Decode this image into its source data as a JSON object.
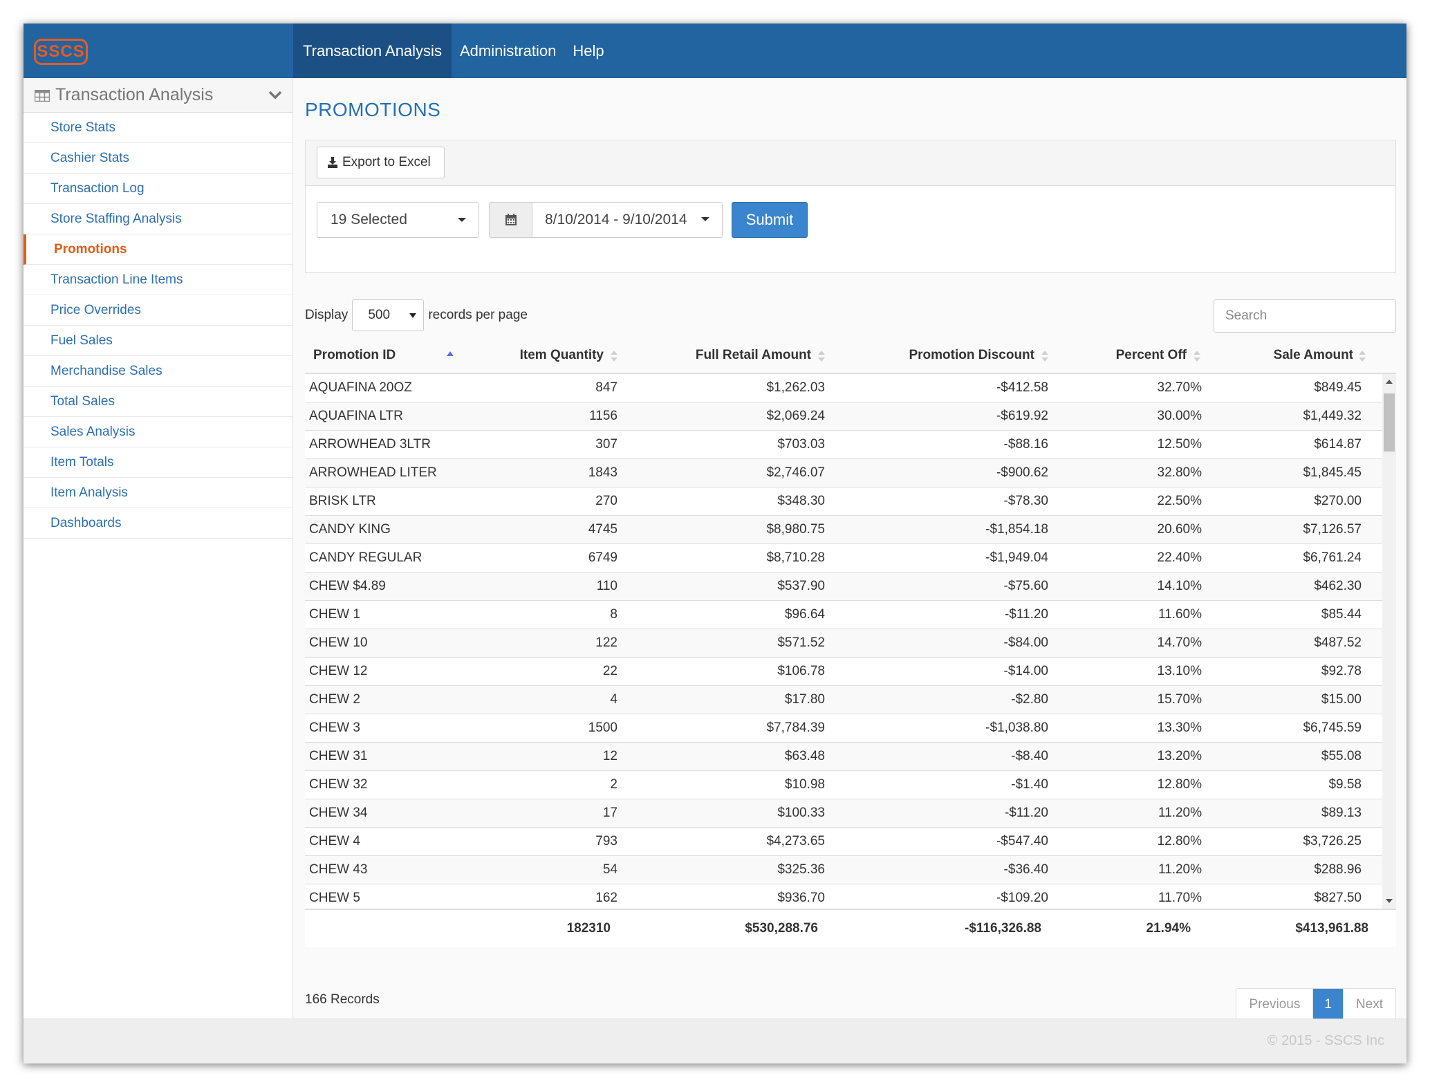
{
  "brand": {
    "logo_text": "SSCS",
    "accent": "#ea5a20",
    "primary": "#2264a0"
  },
  "nav": {
    "items": [
      {
        "label": "Transaction Analysis"
      },
      {
        "label": "Administration"
      },
      {
        "label": "Help"
      }
    ]
  },
  "sidebar": {
    "header": "Transaction Analysis",
    "items": [
      {
        "label": "Store Stats"
      },
      {
        "label": "Cashier Stats"
      },
      {
        "label": "Transaction Log"
      },
      {
        "label": "Store Staffing Analysis"
      },
      {
        "label": "Promotions"
      },
      {
        "label": "Transaction Line Items"
      },
      {
        "label": "Price Overrides"
      },
      {
        "label": "Fuel Sales"
      },
      {
        "label": "Merchandise Sales"
      },
      {
        "label": "Total Sales"
      },
      {
        "label": "Sales Analysis"
      },
      {
        "label": "Item Totals"
      },
      {
        "label": "Item Analysis"
      },
      {
        "label": "Dashboards"
      }
    ]
  },
  "page": {
    "title": "PROMOTIONS"
  },
  "toolbar": {
    "export_label": "Export to Excel",
    "store_select": "19 Selected",
    "date_range": "8/10/2014 - 9/10/2014",
    "submit_label": "Submit"
  },
  "table_controls": {
    "display_label": "Display",
    "page_length": "500",
    "per_page_label": "records per page",
    "search_placeholder": "Search"
  },
  "table": {
    "columns": [
      "Promotion ID",
      "Item Quantity",
      "Full Retail Amount",
      "Promotion Discount",
      "Percent Off",
      "Sale Amount"
    ],
    "sort": {
      "column": "Promotion ID",
      "direction": "ascending"
    },
    "rows": [
      [
        "AQUAFINA 20OZ",
        "847",
        "$1,262.03",
        "-$412.58",
        "32.70%",
        "$849.45"
      ],
      [
        "AQUAFINA LTR",
        "1156",
        "$2,069.24",
        "-$619.92",
        "30.00%",
        "$1,449.32"
      ],
      [
        "ARROWHEAD 3LTR",
        "307",
        "$703.03",
        "-$88.16",
        "12.50%",
        "$614.87"
      ],
      [
        "ARROWHEAD LITER",
        "1843",
        "$2,746.07",
        "-$900.62",
        "32.80%",
        "$1,845.45"
      ],
      [
        "BRISK LTR",
        "270",
        "$348.30",
        "-$78.30",
        "22.50%",
        "$270.00"
      ],
      [
        "CANDY KING",
        "4745",
        "$8,980.75",
        "-$1,854.18",
        "20.60%",
        "$7,126.57"
      ],
      [
        "CANDY REGULAR",
        "6749",
        "$8,710.28",
        "-$1,949.04",
        "22.40%",
        "$6,761.24"
      ],
      [
        "CHEW $4.89",
        "110",
        "$537.90",
        "-$75.60",
        "14.10%",
        "$462.30"
      ],
      [
        "CHEW 1",
        "8",
        "$96.64",
        "-$11.20",
        "11.60%",
        "$85.44"
      ],
      [
        "CHEW 10",
        "122",
        "$571.52",
        "-$84.00",
        "14.70%",
        "$487.52"
      ],
      [
        "CHEW 12",
        "22",
        "$106.78",
        "-$14.00",
        "13.10%",
        "$92.78"
      ],
      [
        "CHEW 2",
        "4",
        "$17.80",
        "-$2.80",
        "15.70%",
        "$15.00"
      ],
      [
        "CHEW 3",
        "1500",
        "$7,784.39",
        "-$1,038.80",
        "13.30%",
        "$6,745.59"
      ],
      [
        "CHEW 31",
        "12",
        "$63.48",
        "-$8.40",
        "13.20%",
        "$55.08"
      ],
      [
        "CHEW 32",
        "2",
        "$10.98",
        "-$1.40",
        "12.80%",
        "$9.58"
      ],
      [
        "CHEW 34",
        "17",
        "$100.33",
        "-$11.20",
        "11.20%",
        "$89.13"
      ],
      [
        "CHEW 4",
        "793",
        "$4,273.65",
        "-$547.40",
        "12.80%",
        "$3,726.25"
      ],
      [
        "CHEW 43",
        "54",
        "$325.36",
        "-$36.40",
        "11.20%",
        "$288.96"
      ],
      [
        "CHEW 5",
        "162",
        "$936.70",
        "-$109.20",
        "11.70%",
        "$827.50"
      ]
    ],
    "totals": [
      "",
      "182310",
      "$530,288.76",
      "-$116,326.88",
      "21.94%",
      "$413,961.88"
    ]
  },
  "pagination": {
    "records_info": "166 Records",
    "previous_label": "Previous",
    "current_page": "1",
    "next_label": "Next"
  },
  "footer": {
    "copyright": "© 2015 - SSCS Inc"
  }
}
